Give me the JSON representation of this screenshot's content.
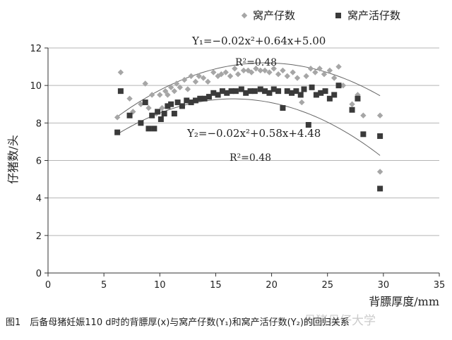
{
  "chart_data": {
    "type": "scatter",
    "ylabel": "仔猪数/头",
    "xlabel": "背膘厚度/mm",
    "xlim": [
      0,
      35
    ],
    "ylim": [
      0,
      12
    ],
    "x_ticks": [
      0,
      5,
      10,
      15,
      20,
      25,
      30,
      35
    ],
    "y_ticks": [
      0,
      2,
      4,
      6,
      8,
      10,
      12
    ],
    "grid": "horizontal",
    "legend_position": "top",
    "series": [
      {
        "name": "窝产仔数",
        "marker": "diamond",
        "color": "#a6a6a6",
        "points": [
          [
            6.2,
            8.3
          ],
          [
            6.5,
            10.7
          ],
          [
            7.3,
            9.3
          ],
          [
            7.6,
            8.6
          ],
          [
            8.3,
            9.0
          ],
          [
            8.7,
            10.1
          ],
          [
            9.0,
            8.8
          ],
          [
            9.3,
            9.5
          ],
          [
            9.7,
            8.5
          ],
          [
            10.0,
            9.5
          ],
          [
            10.2,
            8.8
          ],
          [
            10.5,
            9.7
          ],
          [
            10.7,
            9.5
          ],
          [
            11.0,
            9.9
          ],
          [
            11.3,
            9.7
          ],
          [
            11.5,
            10.1
          ],
          [
            11.8,
            9.9
          ],
          [
            12.2,
            10.3
          ],
          [
            12.5,
            9.8
          ],
          [
            12.8,
            10.5
          ],
          [
            13.2,
            10.2
          ],
          [
            13.5,
            10.5
          ],
          [
            13.9,
            10.4
          ],
          [
            14.3,
            10.2
          ],
          [
            14.8,
            10.7
          ],
          [
            15.2,
            10.5
          ],
          [
            15.5,
            10.6
          ],
          [
            15.9,
            10.7
          ],
          [
            16.3,
            10.5
          ],
          [
            16.7,
            10.9
          ],
          [
            17.0,
            10.6
          ],
          [
            17.5,
            10.8
          ],
          [
            17.9,
            10.8
          ],
          [
            18.2,
            10.7
          ],
          [
            18.6,
            10.9
          ],
          [
            19.0,
            10.8
          ],
          [
            19.4,
            10.8
          ],
          [
            19.8,
            10.7
          ],
          [
            20.2,
            10.9
          ],
          [
            20.6,
            10.6
          ],
          [
            21.0,
            10.8
          ],
          [
            21.4,
            10.5
          ],
          [
            21.9,
            10.7
          ],
          [
            22.3,
            10.4
          ],
          [
            22.7,
            9.1
          ],
          [
            23.1,
            10.5
          ],
          [
            23.5,
            10.9
          ],
          [
            23.9,
            10.7
          ],
          [
            24.3,
            10.9
          ],
          [
            24.7,
            10.6
          ],
          [
            25.2,
            10.8
          ],
          [
            25.6,
            10.4
          ],
          [
            26.0,
            11.0
          ],
          [
            26.4,
            10.0
          ],
          [
            27.2,
            9.0
          ],
          [
            27.7,
            9.5
          ],
          [
            28.2,
            8.4
          ],
          [
            29.7,
            8.4
          ],
          [
            29.7,
            5.4
          ]
        ]
      },
      {
        "name": "窝产活仔数",
        "marker": "square",
        "color": "#3a3a3a",
        "points": [
          [
            6.2,
            7.5
          ],
          [
            6.5,
            9.7
          ],
          [
            7.3,
            8.4
          ],
          [
            8.3,
            8.0
          ],
          [
            8.7,
            9.1
          ],
          [
            9.0,
            7.7
          ],
          [
            9.3,
            8.4
          ],
          [
            9.5,
            7.7
          ],
          [
            9.8,
            8.6
          ],
          [
            10.1,
            8.2
          ],
          [
            10.4,
            8.5
          ],
          [
            10.7,
            8.9
          ],
          [
            11.0,
            9.0
          ],
          [
            11.3,
            8.5
          ],
          [
            11.6,
            9.1
          ],
          [
            12.0,
            8.9
          ],
          [
            12.4,
            9.2
          ],
          [
            12.8,
            9.1
          ],
          [
            13.2,
            9.2
          ],
          [
            13.6,
            9.3
          ],
          [
            14.0,
            9.3
          ],
          [
            14.4,
            9.4
          ],
          [
            14.8,
            9.6
          ],
          [
            15.2,
            9.5
          ],
          [
            15.6,
            9.7
          ],
          [
            16.0,
            9.6
          ],
          [
            16.4,
            9.7
          ],
          [
            16.8,
            9.7
          ],
          [
            17.3,
            9.8
          ],
          [
            17.7,
            9.6
          ],
          [
            18.1,
            9.7
          ],
          [
            18.5,
            9.7
          ],
          [
            19.0,
            9.8
          ],
          [
            19.4,
            9.7
          ],
          [
            19.8,
            9.6
          ],
          [
            20.2,
            9.8
          ],
          [
            20.6,
            9.7
          ],
          [
            21.0,
            8.8
          ],
          [
            21.4,
            9.7
          ],
          [
            21.8,
            9.6
          ],
          [
            22.2,
            9.7
          ],
          [
            22.6,
            9.5
          ],
          [
            22.9,
            9.8
          ],
          [
            23.3,
            7.9
          ],
          [
            23.6,
            9.9
          ],
          [
            24.0,
            9.5
          ],
          [
            24.4,
            9.6
          ],
          [
            24.8,
            9.7
          ],
          [
            25.2,
            9.3
          ],
          [
            25.6,
            9.5
          ],
          [
            26.0,
            10.0
          ],
          [
            27.2,
            8.7
          ],
          [
            27.7,
            9.3
          ],
          [
            28.2,
            7.4
          ],
          [
            29.7,
            7.3
          ],
          [
            29.7,
            4.5
          ]
        ]
      }
    ],
    "fits": [
      {
        "equation": "Y₁=−0.02x²+0.64x+5.00",
        "r2": "R²=0.48",
        "a": -0.0165,
        "b": 0.64,
        "c": 5.0
      },
      {
        "equation": "Y₂=−0.02x²+0.58x+4.48",
        "r2": "R²=0.48",
        "a": -0.0175,
        "b": 0.58,
        "c": 4.48
      }
    ],
    "fit_range": [
      6.2,
      29.7
    ]
  },
  "caption": "图1　后备母猪妊娠110 d时的背膘厚(x)与窝产仔数(Y₁)和窝产活仔数(Y₂)的回归关系",
  "watermark": "母猪母仔大学"
}
